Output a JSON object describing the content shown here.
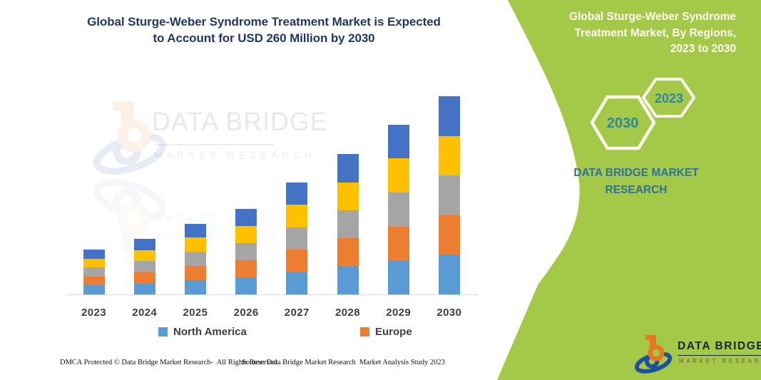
{
  "header": {
    "title_line1": "Global Sturge-Weber Syndrome Treatment Market is Expected",
    "title_line2": "to Account for USD 260 Million by 2030",
    "color": "#1F3864"
  },
  "chart_data": {
    "type": "bar",
    "subtype": "stacked-column",
    "title": "Global Sturge-Weber Syndrome Treatment Market is Expected to Account for USD 260 Million by 2030",
    "unit": "USD Million",
    "categories": [
      "2023",
      "2024",
      "2025",
      "2026",
      "2027",
      "2028",
      "2029",
      "2030"
    ],
    "series": [
      {
        "name": "North America",
        "color": "#5B9BD5",
        "values": [
          11.8,
          14.6,
          18.6,
          22.4,
          29.4,
          36.8,
          44.6,
          52.0
        ]
      },
      {
        "name": "Europe",
        "color": "#ED7D31",
        "values": [
          11.8,
          14.6,
          18.6,
          22.4,
          29.4,
          36.8,
          44.6,
          52.0
        ]
      },
      {
        "name": "Unlabeled region (gray)",
        "color": "#A5A5A5",
        "values": [
          11.8,
          14.6,
          18.6,
          22.4,
          29.4,
          36.8,
          44.6,
          52.0
        ]
      },
      {
        "name": "Unlabeled region (yellow)",
        "color": "#FFC000",
        "values": [
          11.8,
          14.6,
          18.6,
          22.4,
          29.4,
          36.8,
          44.6,
          52.0
        ]
      },
      {
        "name": "Unlabeled region (dark blue)",
        "color": "#4472C4",
        "values": [
          11.8,
          14.6,
          18.6,
          22.4,
          29.4,
          36.8,
          44.6,
          52.0
        ]
      }
    ],
    "totals_estimated": [
      59,
      73,
      93,
      112,
      147,
      184,
      223,
      260
    ],
    "ylim": [
      0,
      270
    ],
    "grid": false,
    "legend_position": "bottom",
    "legend_visible_entries": [
      "North America",
      "Europe"
    ],
    "xlabel": "",
    "ylabel": ""
  },
  "legend": [
    {
      "label": "North America",
      "color": "#5B9BD5"
    },
    {
      "label": "Europe",
      "color": "#ED7D31"
    }
  ],
  "watermark": {
    "brand": "DATA BRIDGE",
    "sub": "MARKET  RESEARCH"
  },
  "panel": {
    "bg": "#A4C847",
    "title_lines": [
      "Global Sturge-Weber Syndrome",
      "Treatment Market, By Regions,",
      "2023 to 2030"
    ],
    "hex_large": "2030",
    "hex_small": "2023",
    "hex_text_color": "#31859C",
    "brand_line1": "DATA BRIDGE MARKET",
    "brand_line2": "RESEARCH",
    "brand_color": "#31719B",
    "logo": {
      "brand": "DATA BRIDGE",
      "sub": "MARKET  RESEARCH"
    }
  },
  "footer": {
    "left": "DMCA Protected © Data Bridge Market Research-  All Rights Reserved.",
    "right": "Source: Data Bridge Market Research  Market Analysis Study 2023"
  }
}
